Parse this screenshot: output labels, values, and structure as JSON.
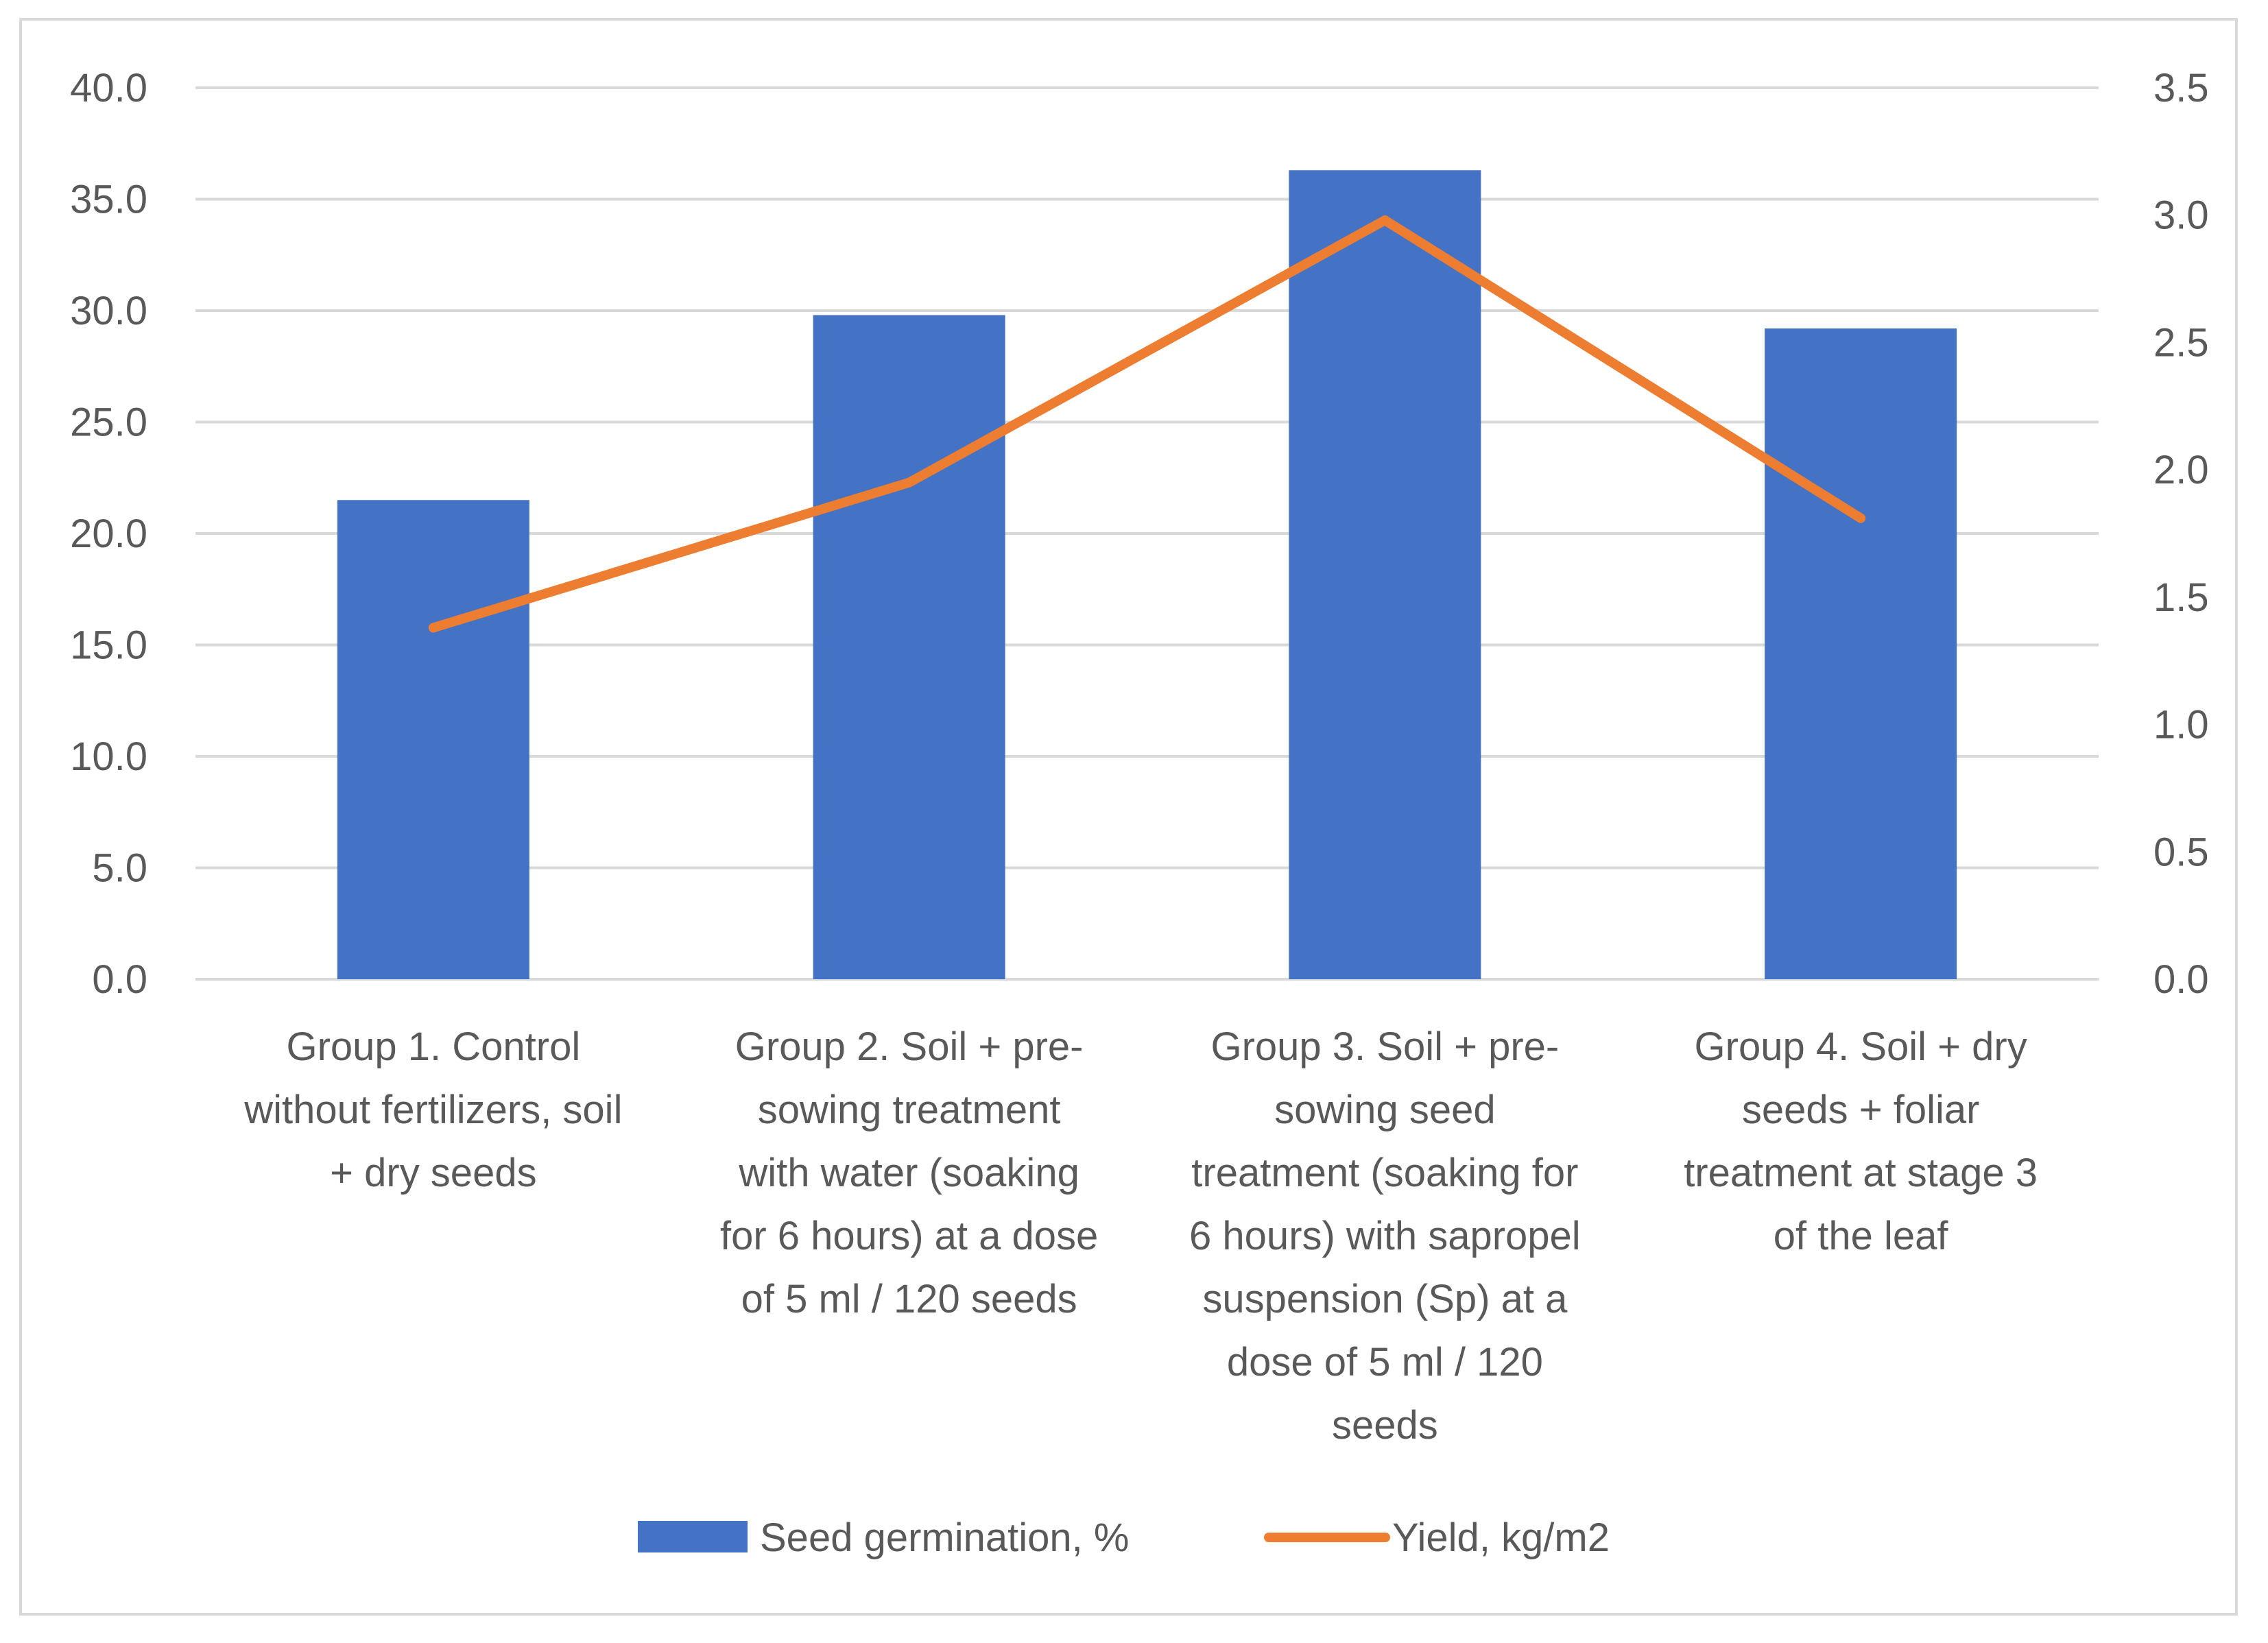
{
  "chart_data": {
    "type": "bar",
    "title": "",
    "categories": [
      [
        "Group 1. Control",
        "without fertilizers, soil",
        "+ dry seeds"
      ],
      [
        "Group 2. Soil + pre-",
        "sowing treatment",
        "with water (soaking",
        "for 6 hours) at a dose",
        "of 5 ml / 120 seeds"
      ],
      [
        "Group 3. Soil + pre-",
        "sowing seed",
        "treatment (soaking for",
        "6 hours) with sapropel",
        "suspension (Sp) at a",
        "dose of 5 ml / 120",
        "seeds"
      ],
      [
        "Group 4. Soil + dry",
        "seeds + foliar",
        "treatment at stage 3",
        "of the leaf"
      ]
    ],
    "series": [
      {
        "name": "Seed germination, %",
        "type": "bar",
        "axis": "left",
        "color": "#4472c4",
        "values": [
          21.5,
          29.8,
          36.3,
          29.2
        ]
      },
      {
        "name": "Yield, kg/m2",
        "type": "line",
        "axis": "right",
        "color": "#ed7d31",
        "values": [
          1.38,
          1.95,
          2.98,
          1.81
        ]
      }
    ],
    "y_left": {
      "min": 0,
      "max": 40,
      "step": 5,
      "decimals": 1,
      "ticks": [
        "0.0",
        "5.0",
        "10.0",
        "15.0",
        "20.0",
        "25.0",
        "30.0",
        "35.0",
        "40.0"
      ]
    },
    "y_right": {
      "min": 0,
      "max": 3.5,
      "step": 0.5,
      "decimals": 1,
      "ticks": [
        "0.0",
        "0.5",
        "1.0",
        "1.5",
        "2.0",
        "2.5",
        "3.0",
        "3.5"
      ]
    },
    "grid": true,
    "legend_position": "bottom",
    "xlabel": "",
    "ylabel": ""
  }
}
